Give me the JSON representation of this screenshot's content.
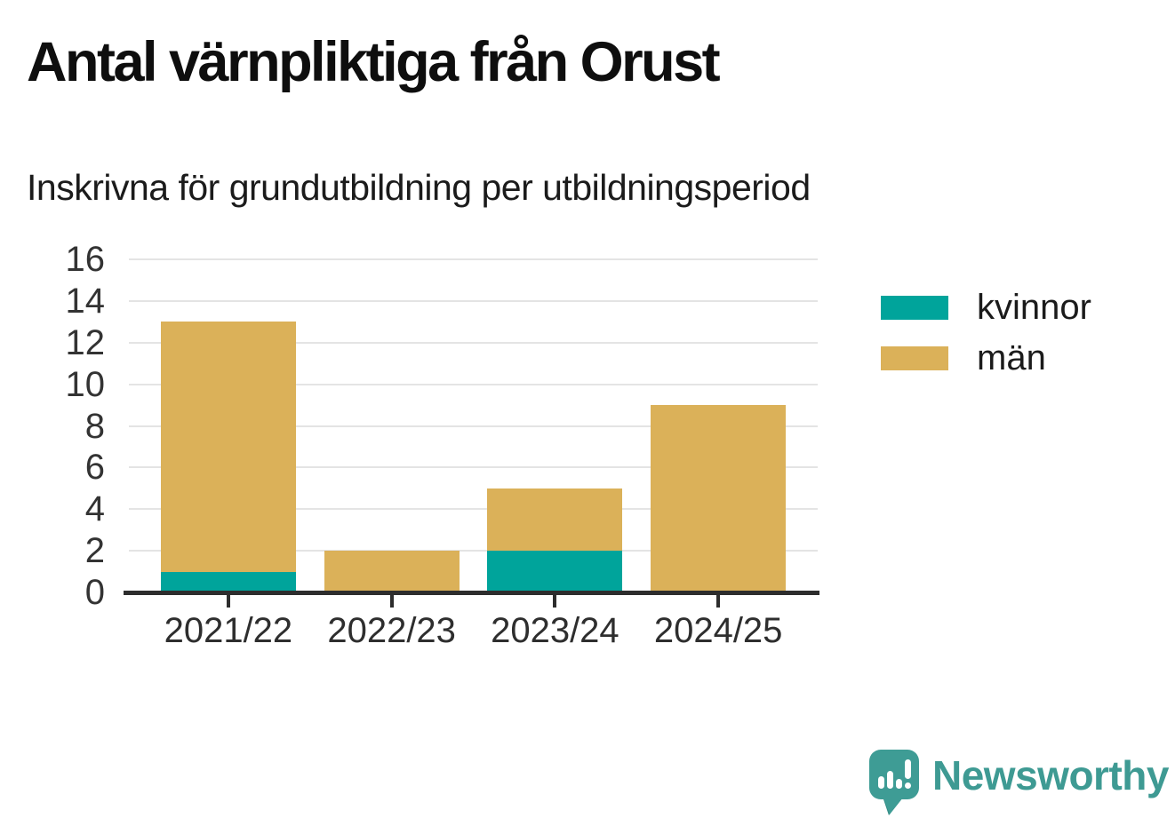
{
  "header": {
    "title": "Antal värnpliktiga från Orust",
    "subtitle": "Inskrivna för grundutbildning per utbildningsperiod"
  },
  "chart_data": {
    "type": "bar",
    "stacked": true,
    "title": "Antal värnpliktiga från Orust",
    "subtitle": "Inskrivna för grundutbildning per utbildningsperiod",
    "categories": [
      "2021/22",
      "2022/23",
      "2023/24",
      "2024/25"
    ],
    "series": [
      {
        "name": "kvinnor",
        "color": "#00a49b",
        "values": [
          1,
          0,
          2,
          0
        ]
      },
      {
        "name": "män",
        "color": "#dbb159",
        "values": [
          12,
          2,
          3,
          9
        ]
      }
    ],
    "totals": [
      13,
      2,
      5,
      9
    ],
    "xlabel": "",
    "ylabel": "",
    "ylim": [
      0,
      16
    ],
    "yticks": [
      0,
      2,
      4,
      6,
      8,
      10,
      12,
      14,
      16
    ],
    "grid": true,
    "legend_position": "right"
  },
  "legend": {
    "items": [
      {
        "label": "kvinnor",
        "color": "#00a49b"
      },
      {
        "label": "män",
        "color": "#dbb159"
      }
    ]
  },
  "branding": {
    "name": "Newsworthy",
    "color": "#3e9a93",
    "icon_color": "#3e9c95"
  },
  "colors": {
    "kvinnor": "#00a49b",
    "man": "#dbb159",
    "axis_line": "#2d2d2d",
    "gridline": "#e4e4e4",
    "text": "#1b1b1b"
  }
}
